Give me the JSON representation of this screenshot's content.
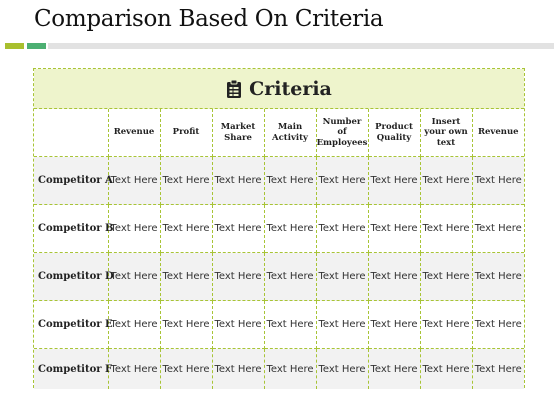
{
  "page": {
    "title": "Comparison Based On Criteria"
  },
  "table": {
    "header": "Criteria",
    "header_icon": "clipboard-icon",
    "columns": [
      "Revenue",
      "Profit",
      "Market Share",
      "Main Activity",
      "Number of Employees",
      "Product Quality",
      "Insert your own text",
      "Revenue"
    ],
    "rows": [
      {
        "label": "Competitor A",
        "cells": [
          "Text Here",
          "Text Here",
          "Text Here",
          "Text Here",
          "Text Here",
          "Text Here",
          "Text Here",
          "Text Here"
        ]
      },
      {
        "label": "Competitor B",
        "cells": [
          "Text Here",
          "Text Here",
          "Text Here",
          "Text Here",
          "Text Here",
          "Text Here",
          "Text Here",
          "Text Here"
        ]
      },
      {
        "label": "Competitor D",
        "cells": [
          "Text Here",
          "Text Here",
          "Text Here",
          "Text Here",
          "Text Here",
          "Text Here",
          "Text Here",
          "Text Here"
        ]
      },
      {
        "label": "Competitor E",
        "cells": [
          "Text Here",
          "Text Here",
          "Text Here",
          "Text Here",
          "Text Here",
          "Text Here",
          "Text Here",
          "Text Here"
        ]
      },
      {
        "label": "Competitor F",
        "cells": [
          "Text Here",
          "Text Here",
          "Text Here",
          "Text Here",
          "Text Here",
          "Text Here",
          "Text Here",
          "Text Here"
        ]
      }
    ]
  },
  "colors": {
    "accent_olive": "#a8bf2e",
    "accent_green": "#4caf72",
    "header_fill": "#eef4cc",
    "border": "#a8c436",
    "row_shade": "#f2f2f2"
  }
}
